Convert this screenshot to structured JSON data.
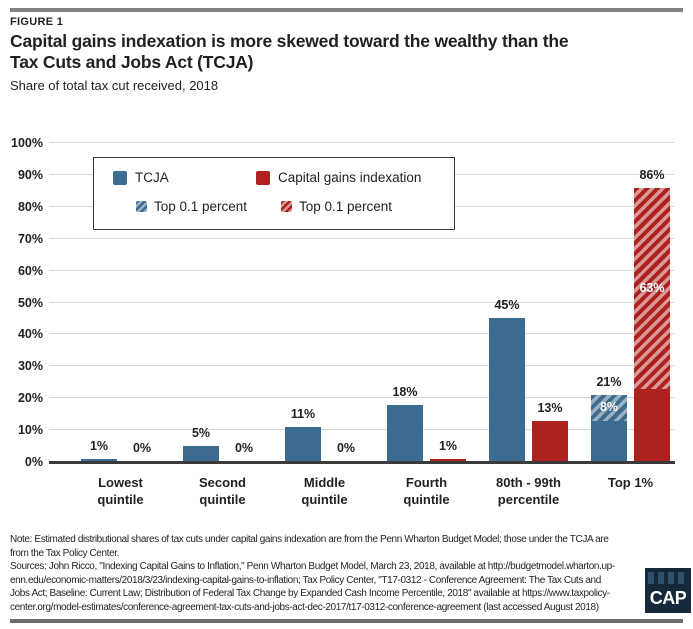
{
  "figure_label": "FIGURE 1",
  "header": {
    "title_line1": "Capital gains indexation is more skewed toward the wealthy than the",
    "title_line2": "Tax Cuts and Jobs Act (TCJA)",
    "subtitle": "Share of total tax cut received, 2018"
  },
  "legend": {
    "tcja_label": "TCJA",
    "cgi_label": "Capital gains indexation",
    "top01_blue_label": "Top 0.1 percent",
    "top01_red_label": "Top 0.1 percent"
  },
  "chart_data": {
    "type": "bar",
    "title": "Capital gains indexation is more skewed toward the wealthy than the Tax Cuts and Jobs Act (TCJA)",
    "subtitle": "Share of total tax cut received, 2018",
    "categories": [
      "Lowest quintile",
      "Second quintile",
      "Middle quintile",
      "Fourth quintile",
      "80th - 99th percentile",
      "Top 1%"
    ],
    "category_label_lines": [
      [
        "Lowest",
        "quintile"
      ],
      [
        "Second",
        "quintile"
      ],
      [
        "Middle",
        "quintile"
      ],
      [
        "Fourth",
        "quintile"
      ],
      [
        "80th - 99th",
        "percentile"
      ],
      [
        "Top 1%"
      ]
    ],
    "series": [
      {
        "name": "TCJA",
        "color_key": "blue",
        "values": [
          1,
          5,
          11,
          18,
          45,
          21
        ],
        "overlay": {
          "name": "Top 0.1 percent",
          "values": [
            null,
            null,
            null,
            null,
            null,
            8
          ]
        }
      },
      {
        "name": "Capital gains indexation",
        "color_key": "red",
        "values": [
          0,
          0,
          0,
          1,
          13,
          86
        ],
        "overlay": {
          "name": "Top 0.1 percent",
          "values": [
            null,
            null,
            null,
            null,
            null,
            63
          ]
        }
      }
    ],
    "ylim": [
      0,
      100
    ],
    "ytick_step": 10,
    "yticks": [
      "0%",
      "10%",
      "20%",
      "30%",
      "40%",
      "50%",
      "60%",
      "70%",
      "80%",
      "90%",
      "100%"
    ],
    "grid": true,
    "legend_position": "top-left-inset",
    "value_label_suffix": "%"
  },
  "note": {
    "lines": [
      "Note: Estimated distributional shares of tax cuts under capital gains indexation are from the Penn Wharton Budget Model; those under the TCJA are",
      "from the Tax Policy Center."
    ]
  },
  "sources": {
    "lines": [
      "Sources: John Ricco, \"Indexing Capital Gains to Inflation,\" Penn Wharton Budget Model, March 23, 2018, available at http://budgetmodel.wharton.up-",
      "enn.edu/economic-matters/2018/3/23/indexing-capital-gains-to-inflation; Tax Policy Center, \"T17-0312 - Conference Agreement: The Tax Cuts and",
      "Jobs Act; Baseline: Current Law; Distribution of Federal Tax Change by Expanded Cash Income Percentile, 2018\" available at https://www.taxpolicy-",
      "center.org/model-estimates/conference-agreement-tax-cuts-and-jobs-act-dec-2017/t17-0312-conference-agreement (last accessed August 2018)"
    ]
  },
  "logo": {
    "text": "CAP"
  },
  "colors": {
    "blue": "#3D6C90",
    "red": "#AE211F",
    "blue_hatch_light": "#9AB1C4",
    "red_hatch_light": "#D99A97",
    "grid": "#D9D9D9",
    "axis": "#3A3A3A",
    "text": "#231F20",
    "top_rule": "#808285",
    "bottom_rule": "#6D6E71",
    "logo_bg": "#16293B",
    "logo_band": "#31506C"
  }
}
